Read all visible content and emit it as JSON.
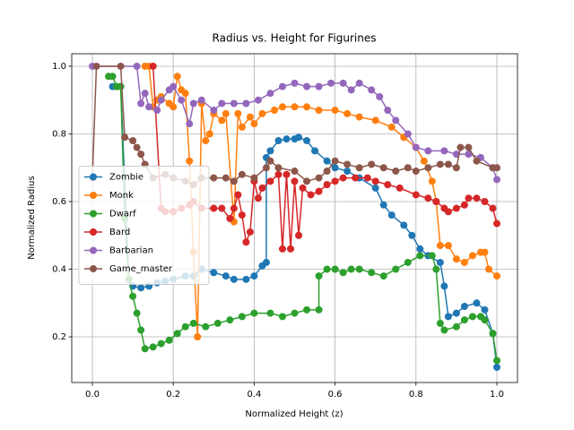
{
  "chart_data": {
    "type": "line",
    "title": "Radius vs. Height for Figurines",
    "x_label": "Normalized Height (z)",
    "y_label": "Normalized Radius",
    "xlim": [
      -0.051,
      1.051
    ],
    "ylim": [
      0.065,
      1.037
    ],
    "xticks": [
      {
        "value": 0,
        "label": "0.0"
      },
      0.2,
      0.4,
      0.6,
      0.8,
      {
        "value": 1,
        "label": "1.0"
      }
    ],
    "yticks": [
      0.2,
      0.4,
      0.6,
      0.8,
      {
        "value": 1,
        "label": "1.0"
      }
    ],
    "grid": true,
    "legend": "center left",
    "series": [
      {
        "name": "Zombie",
        "color": "#1f77b4",
        "x": [
          0.05,
          0.06,
          0.07,
          0.09,
          0.1,
          0.12,
          0.14,
          0.16,
          0.18,
          0.2,
          0.23,
          0.25,
          0.27,
          0.3,
          0.33,
          0.35,
          0.38,
          0.4,
          0.42,
          0.43,
          0.43,
          0.44,
          0.46,
          0.48,
          0.5,
          0.51,
          0.53,
          0.55,
          0.58,
          0.6,
          0.63,
          0.66,
          0.7,
          0.72,
          0.74,
          0.77,
          0.79,
          0.81,
          0.83,
          0.86,
          0.87,
          0.88,
          0.9,
          0.92,
          0.95,
          0.97,
          0.99,
          1.0
        ],
        "values": [
          0.94,
          0.94,
          0.94,
          0.37,
          0.35,
          0.345,
          0.35,
          0.36,
          0.365,
          0.37,
          0.38,
          0.38,
          0.4,
          0.39,
          0.38,
          0.37,
          0.37,
          0.38,
          0.41,
          0.42,
          0.73,
          0.75,
          0.78,
          0.785,
          0.785,
          0.79,
          0.78,
          0.75,
          0.72,
          0.7,
          0.69,
          0.67,
          0.64,
          0.59,
          0.56,
          0.53,
          0.5,
          0.46,
          0.44,
          0.42,
          0.35,
          0.26,
          0.27,
          0.29,
          0.3,
          0.28,
          0.21,
          0.11
        ]
      },
      {
        "name": "Monk",
        "color": "#ff7f0e",
        "x": [
          0.13,
          0.14,
          0.15,
          0.16,
          0.17,
          0.19,
          0.2,
          0.21,
          0.22,
          0.23,
          0.24,
          0.25,
          0.26,
          0.27,
          0.28,
          0.29,
          0.3,
          0.32,
          0.33,
          0.35,
          0.36,
          0.37,
          0.39,
          0.4,
          0.42,
          0.45,
          0.47,
          0.5,
          0.53,
          0.56,
          0.6,
          0.63,
          0.66,
          0.7,
          0.74,
          0.77,
          0.8,
          0.82,
          0.84,
          0.85,
          0.86,
          0.88,
          0.9,
          0.92,
          0.94,
          0.96,
          0.97,
          0.98,
          1.0
        ],
        "values": [
          1.0,
          1.0,
          0.88,
          0.9,
          0.91,
          0.89,
          0.88,
          0.97,
          0.93,
          0.92,
          0.72,
          0.45,
          0.2,
          0.89,
          0.78,
          0.8,
          0.86,
          0.84,
          0.86,
          0.54,
          0.86,
          0.82,
          0.85,
          0.83,
          0.86,
          0.87,
          0.88,
          0.88,
          0.88,
          0.87,
          0.87,
          0.86,
          0.85,
          0.84,
          0.82,
          0.79,
          0.76,
          0.72,
          0.66,
          0.6,
          0.47,
          0.47,
          0.43,
          0.42,
          0.44,
          0.45,
          0.45,
          0.4,
          0.38
        ]
      },
      {
        "name": "Dwarf",
        "color": "#2ca02c",
        "x": [
          0.04,
          0.05,
          0.06,
          0.07,
          0.08,
          0.09,
          0.1,
          0.11,
          0.12,
          0.13,
          0.15,
          0.17,
          0.19,
          0.21,
          0.23,
          0.25,
          0.28,
          0.31,
          0.34,
          0.37,
          0.4,
          0.44,
          0.47,
          0.5,
          0.53,
          0.56,
          0.56,
          0.58,
          0.6,
          0.62,
          0.64,
          0.66,
          0.69,
          0.72,
          0.75,
          0.78,
          0.81,
          0.84,
          0.85,
          0.86,
          0.87,
          0.9,
          0.92,
          0.94,
          0.96,
          0.97,
          0.99,
          1.0
        ],
        "values": [
          0.97,
          0.97,
          0.94,
          0.94,
          0.55,
          0.37,
          0.32,
          0.27,
          0.22,
          0.165,
          0.17,
          0.18,
          0.19,
          0.21,
          0.23,
          0.24,
          0.23,
          0.24,
          0.25,
          0.26,
          0.27,
          0.27,
          0.26,
          0.27,
          0.28,
          0.28,
          0.38,
          0.4,
          0.4,
          0.39,
          0.4,
          0.4,
          0.39,
          0.38,
          0.4,
          0.42,
          0.44,
          0.44,
          0.4,
          0.24,
          0.22,
          0.23,
          0.25,
          0.26,
          0.26,
          0.25,
          0.21,
          0.13
        ]
      },
      {
        "name": "Bard",
        "color": "#d62728",
        "x": [
          0.15,
          0.17,
          0.18,
          0.2,
          0.22,
          0.24,
          0.25,
          0.27,
          0.3,
          0.32,
          0.34,
          0.35,
          0.36,
          0.37,
          0.38,
          0.39,
          0.4,
          0.41,
          0.42,
          0.44,
          0.46,
          0.47,
          0.48,
          0.49,
          0.5,
          0.51,
          0.52,
          0.54,
          0.56,
          0.58,
          0.6,
          0.62,
          0.65,
          0.68,
          0.7,
          0.73,
          0.76,
          0.8,
          0.83,
          0.85,
          0.87,
          0.88,
          0.9,
          0.92,
          0.93,
          0.95,
          0.97,
          0.99,
          1.0
        ],
        "values": [
          1.0,
          0.58,
          0.57,
          0.57,
          0.58,
          0.59,
          0.6,
          0.58,
          0.58,
          0.58,
          0.55,
          0.58,
          0.62,
          0.56,
          0.48,
          0.51,
          0.66,
          0.61,
          0.64,
          0.66,
          0.68,
          0.46,
          0.68,
          0.46,
          0.66,
          0.5,
          0.64,
          0.62,
          0.63,
          0.65,
          0.66,
          0.67,
          0.67,
          0.67,
          0.66,
          0.65,
          0.64,
          0.62,
          0.61,
          0.6,
          0.58,
          0.57,
          0.58,
          0.59,
          0.61,
          0.61,
          0.6,
          0.58,
          0.535
        ]
      },
      {
        "name": "Barbarian",
        "color": "#9467bd",
        "x": [
          0.0,
          0.11,
          0.12,
          0.13,
          0.14,
          0.16,
          0.17,
          0.19,
          0.2,
          0.22,
          0.24,
          0.25,
          0.27,
          0.3,
          0.32,
          0.35,
          0.38,
          0.41,
          0.44,
          0.47,
          0.5,
          0.53,
          0.56,
          0.59,
          0.62,
          0.64,
          0.66,
          0.69,
          0.71,
          0.73,
          0.75,
          0.78,
          0.8,
          0.83,
          0.87,
          0.9,
          0.93,
          0.96,
          0.99,
          1.0
        ],
        "values": [
          1.0,
          1.0,
          0.89,
          0.92,
          0.88,
          0.87,
          0.9,
          0.93,
          0.94,
          0.9,
          0.83,
          0.89,
          0.9,
          0.87,
          0.89,
          0.89,
          0.89,
          0.9,
          0.92,
          0.94,
          0.95,
          0.94,
          0.94,
          0.95,
          0.95,
          0.93,
          0.95,
          0.93,
          0.91,
          0.87,
          0.84,
          0.8,
          0.76,
          0.75,
          0.75,
          0.74,
          0.74,
          0.73,
          0.7,
          0.665
        ]
      },
      {
        "name": "Game_master",
        "color": "#8c564b",
        "x": [
          0.0,
          0.01,
          0.07,
          0.08,
          0.1,
          0.11,
          0.12,
          0.13,
          0.15,
          0.18,
          0.2,
          0.23,
          0.25,
          0.27,
          0.3,
          0.33,
          0.35,
          0.37,
          0.4,
          0.43,
          0.44,
          0.46,
          0.5,
          0.53,
          0.56,
          0.58,
          0.6,
          0.63,
          0.66,
          0.69,
          0.72,
          0.75,
          0.78,
          0.8,
          0.83,
          0.86,
          0.88,
          0.9,
          0.91,
          0.93,
          0.95,
          0.99,
          1.0
        ],
        "values": [
          0.67,
          1.0,
          1.0,
          0.79,
          0.78,
          0.76,
          0.74,
          0.71,
          0.67,
          0.68,
          0.67,
          0.66,
          0.65,
          0.67,
          0.67,
          0.67,
          0.66,
          0.68,
          0.67,
          0.7,
          0.72,
          0.7,
          0.69,
          0.66,
          0.67,
          0.69,
          0.72,
          0.71,
          0.7,
          0.71,
          0.7,
          0.69,
          0.7,
          0.69,
          0.7,
          0.71,
          0.71,
          0.7,
          0.76,
          0.76,
          0.72,
          0.7,
          0.7
        ]
      }
    ]
  }
}
